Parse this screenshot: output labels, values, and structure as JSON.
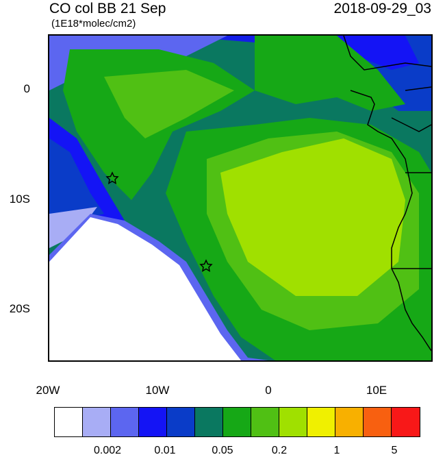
{
  "title_left": "CO col BB 21 Sep",
  "units": "(1E18*molec/cm2)",
  "title_right": "2018-09-29_03",
  "y_axis": {
    "labels": [
      "0",
      "10S",
      "20S"
    ]
  },
  "x_axis": {
    "labels": [
      "20W",
      "10W",
      "0",
      "10E"
    ]
  },
  "colorbar": {
    "colors": [
      "#ffffff",
      "#a8adf5",
      "#5c66f0",
      "#1414f5",
      "#0a3cc8",
      "#0a7860",
      "#16a816",
      "#50c014",
      "#a0e000",
      "#f0f000",
      "#f8b000",
      "#f86010",
      "#f81818"
    ],
    "labels": [
      "0.002",
      "0.01",
      "0.05",
      "0.2",
      "1",
      "5"
    ]
  },
  "markers": [
    "star-marker",
    "star-marker"
  ]
}
